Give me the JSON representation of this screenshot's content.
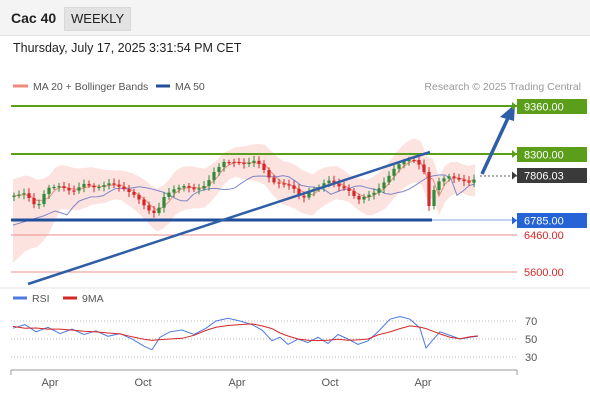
{
  "header": {
    "title": "Cac 40",
    "timeframe": "WEEKLY"
  },
  "datetime": "Thursday, July 17, 2025 3:31:54 PM CET",
  "legend": {
    "ma20": "MA 20 + Bollinger Bands",
    "ma50": "MA 50",
    "copyright": "Research © 2025 Trading Central",
    "rsi": "RSI",
    "rsi_ma": "9MA"
  },
  "colors": {
    "green": "#5a9e1a",
    "blue": "#1f4f9a",
    "red": "#d62728",
    "bb_fill": "#fbd9d4",
    "ma20": "#f08a7e",
    "ma50": "#7d86c9",
    "rsi": "#4d79e0",
    "rsi_ma": "#d62728"
  },
  "chart_data": [
    {
      "type": "candlestick",
      "x_ticks": [
        "Apr",
        "Oct",
        "Apr",
        "Oct",
        "Apr"
      ],
      "current_price": "7806.03",
      "levels": [
        {
          "value": 9360,
          "label": "9360.00",
          "style": "green-line"
        },
        {
          "value": 8300,
          "label": "8300.00",
          "style": "green-line"
        },
        {
          "value": 6785,
          "label": "6785.00",
          "style": "blue-line"
        },
        {
          "value": 6460,
          "label": "6460.00",
          "style": "red-line"
        },
        {
          "value": 5600,
          "label": "5600.00",
          "style": "red-line"
        }
      ],
      "indicators": [
        "MA 20 + Bollinger Bands",
        "MA 50"
      ],
      "annotations": [
        "rising trendline",
        "upward arrow toward 9360.00"
      ]
    },
    {
      "type": "line",
      "series": [
        {
          "name": "RSI"
        },
        {
          "name": "9MA"
        }
      ],
      "y_ticks": [
        70,
        50,
        30
      ],
      "ylim": [
        20,
        80
      ]
    }
  ]
}
